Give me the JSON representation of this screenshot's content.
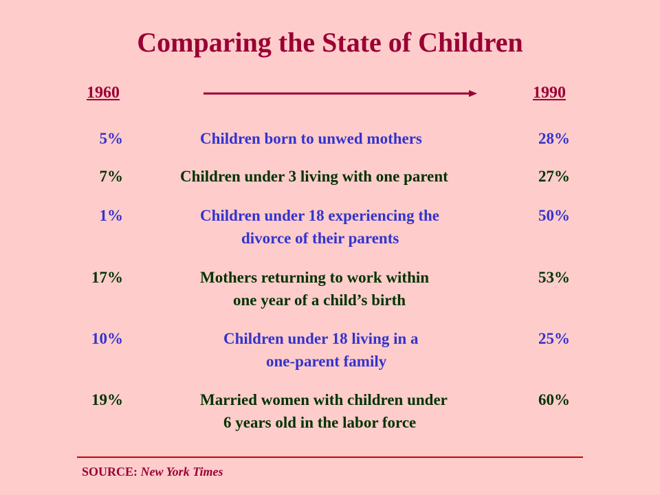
{
  "title": "Comparing the State of Children",
  "years": {
    "start": "1960",
    "end": "1990"
  },
  "rows": [
    {
      "v1960": "5%",
      "label_lines": [
        "Children born to unwed mothers"
      ],
      "v1990": "28%",
      "color": "#3333cc"
    },
    {
      "v1960": "7%",
      "label_lines": [
        "Children under 3 living with one parent"
      ],
      "v1990": "27%",
      "color": "#003300"
    },
    {
      "v1960": "1%",
      "label_lines": [
        "Children under 18 experiencing the",
        "divorce of their parents"
      ],
      "v1990": "50%",
      "color": "#3333cc"
    },
    {
      "v1960": "17%",
      "label_lines": [
        "Mothers returning to work within",
        "one year of a child’s birth"
      ],
      "v1990": "53%",
      "color": "#003300"
    },
    {
      "v1960": "10%",
      "label_lines": [
        "Children under 18 living in a",
        "one-parent family"
      ],
      "v1990": "25%",
      "color": "#3333cc"
    },
    {
      "v1960": "19%",
      "label_lines": [
        "Married women with children under",
        "6 years old in the labor force"
      ],
      "v1990": "60%",
      "color": "#003300"
    }
  ],
  "source": {
    "label": "SOURCE:",
    "publication": "New York Times"
  },
  "colors": {
    "background": "#ffcccc",
    "title": "#990033",
    "blue": "#3333cc",
    "green": "#003300",
    "rule": "#cc0000"
  }
}
